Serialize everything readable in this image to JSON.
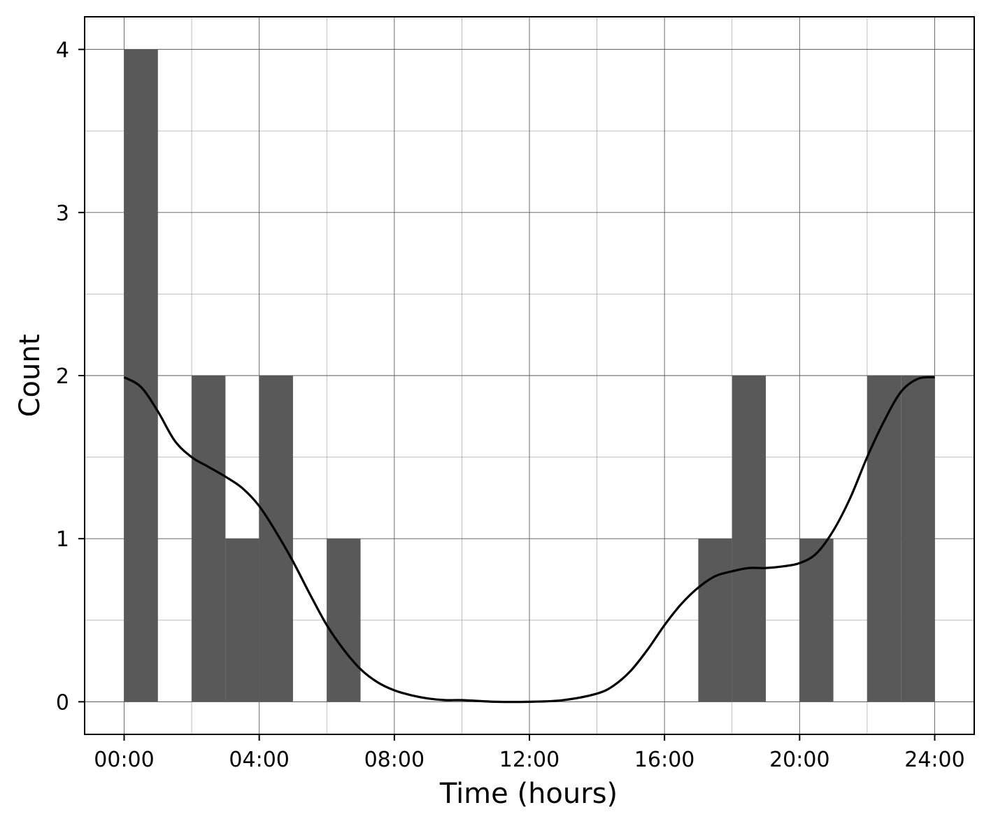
{
  "chart_data": {
    "type": "bar",
    "title": "",
    "xlabel": "Time (hours)",
    "ylabel": "Count",
    "xlim": [
      -1.17,
      25.17
    ],
    "ylim": [
      -0.2,
      4.2
    ],
    "grid": true,
    "bin_width_hours": 1,
    "bars": [
      {
        "start": 0,
        "end": 1,
        "value": 4
      },
      {
        "start": 2,
        "end": 3,
        "value": 2
      },
      {
        "start": 3,
        "end": 4,
        "value": 1
      },
      {
        "start": 4,
        "end": 5,
        "value": 2
      },
      {
        "start": 6,
        "end": 7,
        "value": 1
      },
      {
        "start": 17,
        "end": 18,
        "value": 1
      },
      {
        "start": 18,
        "end": 19,
        "value": 2
      },
      {
        "start": 20,
        "end": 21,
        "value": 1
      },
      {
        "start": 22,
        "end": 23,
        "value": 2
      },
      {
        "start": 23,
        "end": 24,
        "value": 2
      }
    ],
    "density_curve": {
      "x": [
        0,
        0.5,
        1,
        1.5,
        2,
        2.5,
        3,
        3.5,
        4,
        4.5,
        5,
        5.5,
        6,
        6.5,
        7,
        7.5,
        8,
        8.5,
        9,
        9.5,
        10,
        11,
        12,
        13,
        14,
        14.5,
        15,
        15.5,
        16,
        16.5,
        17,
        17.5,
        18,
        18.5,
        19,
        19.5,
        20,
        20.5,
        21,
        21.5,
        22,
        22.5,
        23,
        23.5,
        24
      ],
      "y": [
        1.99,
        1.93,
        1.78,
        1.6,
        1.5,
        1.44,
        1.38,
        1.31,
        1.2,
        1.04,
        0.86,
        0.66,
        0.47,
        0.32,
        0.2,
        0.12,
        0.07,
        0.04,
        0.02,
        0.01,
        0.01,
        0.0,
        0.0,
        0.01,
        0.05,
        0.1,
        0.19,
        0.32,
        0.47,
        0.6,
        0.7,
        0.77,
        0.8,
        0.82,
        0.82,
        0.83,
        0.85,
        0.91,
        1.05,
        1.25,
        1.5,
        1.72,
        1.9,
        1.98,
        1.99
      ]
    },
    "x_ticks": [
      {
        "value": 0,
        "label": "00:00"
      },
      {
        "value": 4,
        "label": "04:00"
      },
      {
        "value": 8,
        "label": "08:00"
      },
      {
        "value": 12,
        "label": "12:00"
      },
      {
        "value": 16,
        "label": "16:00"
      },
      {
        "value": 20,
        "label": "20:00"
      },
      {
        "value": 24,
        "label": "24:00"
      }
    ],
    "y_ticks": [
      {
        "value": 0,
        "label": "0"
      },
      {
        "value": 1,
        "label": "1"
      },
      {
        "value": 2,
        "label": "2"
      },
      {
        "value": 3,
        "label": "3"
      },
      {
        "value": 4,
        "label": "4"
      }
    ],
    "x_minor_ticks": [
      2,
      6,
      10,
      14,
      18,
      22
    ],
    "y_minor_ticks": [
      0.5,
      1.5,
      2.5,
      3.5
    ],
    "colors": {
      "bar": "#595959",
      "curve": "#000000",
      "grid_major": "#555555",
      "grid_minor": "#9a9a9a",
      "axes": "#000000"
    }
  }
}
